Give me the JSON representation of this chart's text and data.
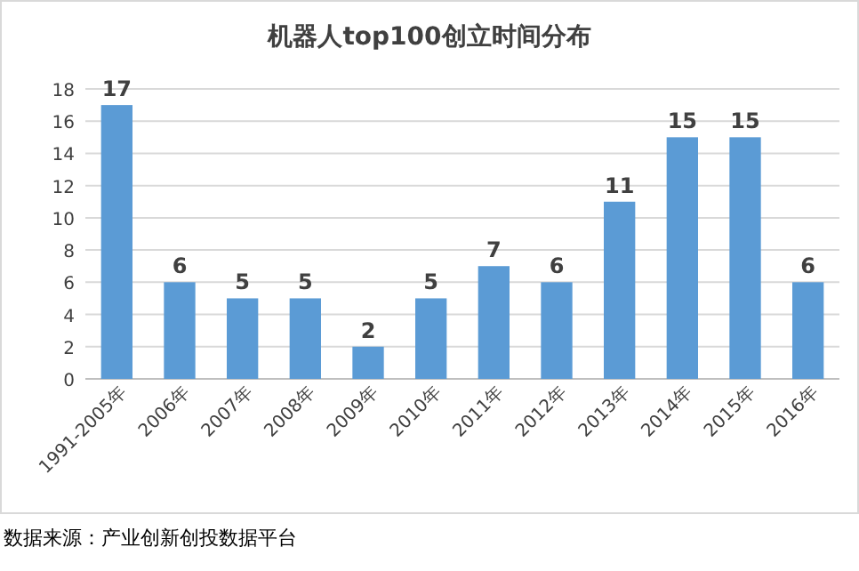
{
  "chart_data": {
    "type": "bar",
    "title": "机器人top100创立时间分布",
    "categories": [
      "1991-2005年",
      "2006年",
      "2007年",
      "2008年",
      "2009年",
      "2010年",
      "2011年",
      "2012年",
      "2013年",
      "2014年",
      "2015年",
      "2016年"
    ],
    "values": [
      17,
      6,
      5,
      5,
      2,
      5,
      7,
      6,
      11,
      15,
      15,
      6
    ],
    "color": "#5b9bd5",
    "ylim": [
      0,
      18
    ],
    "yticks": [
      0,
      2,
      4,
      6,
      8,
      10,
      12,
      14,
      16,
      18
    ],
    "grid": "y",
    "data_labels": true,
    "annotations": [
      "数据来源：产业创新创投数据平台"
    ]
  }
}
